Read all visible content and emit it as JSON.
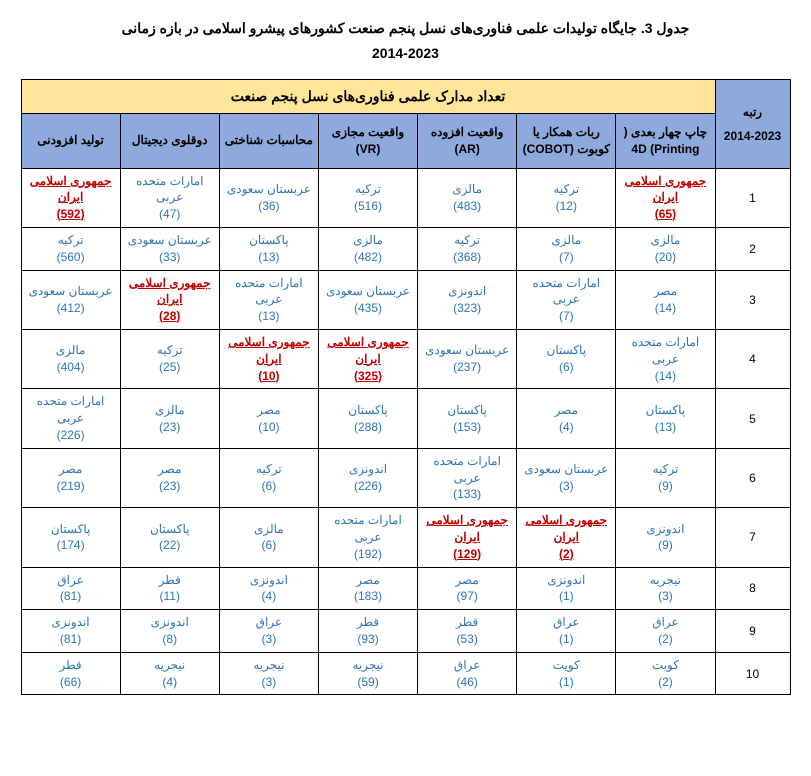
{
  "title": "جدول 3. جایگاه تولیدات علمی فناوری‌های نسل پنجم صنعت کشورهای پیشرو اسلامی در بازه زمانی",
  "subtitle": "2014-2023",
  "headers": {
    "rank": "رتبه",
    "rankYears": "2014-2023",
    "mainHeader": "تعداد مدارک علمی فناوری‌های نسل پنجم صنعت",
    "cols": [
      "چاپ چهار بعدی ( 4D (Printing",
      "ربات همکار یا کوبوت (COBOT)",
      "واقعیت افزوده (AR)",
      "واقعیت مجازی (VR)",
      "محاسبات شناختی",
      "دوقلوی دیجیتال",
      "تولید افزودنی"
    ]
  },
  "rows": [
    {
      "rank": "1",
      "cells": [
        {
          "c": "جمهوری اسلامی ایران",
          "v": "(65)",
          "hl": true
        },
        {
          "c": "ترکیه",
          "v": "(12)"
        },
        {
          "c": "مالزی",
          "v": "(483)"
        },
        {
          "c": "ترکیه",
          "v": "(516)"
        },
        {
          "c": "عربستان سعودی",
          "v": "(36)"
        },
        {
          "c": "امارات متحده عربی",
          "v": "(47)"
        },
        {
          "c": "جمهوری اسلامی ایران",
          "v": "(592)",
          "hl": true
        }
      ]
    },
    {
      "rank": "2",
      "cells": [
        {
          "c": "مالزی",
          "v": "(20)"
        },
        {
          "c": "مالزی",
          "v": "(7)"
        },
        {
          "c": "ترکیه",
          "v": "(368)"
        },
        {
          "c": "مالزی",
          "v": "(482)"
        },
        {
          "c": "پاکستان",
          "v": "(13)"
        },
        {
          "c": "عربستان سعودی",
          "v": "(33)"
        },
        {
          "c": "ترکیه",
          "v": "(560)"
        }
      ]
    },
    {
      "rank": "3",
      "cells": [
        {
          "c": "مصر",
          "v": "(14)"
        },
        {
          "c": "امارات متحده عربی",
          "v": "(7)"
        },
        {
          "c": "اندونزی",
          "v": "(323)"
        },
        {
          "c": "عربستان سعودی",
          "v": "(435)"
        },
        {
          "c": "امارات متحده عربی",
          "v": "(13)"
        },
        {
          "c": "جمهوری اسلامی ایران",
          "v": "(28)",
          "hl": true
        },
        {
          "c": "عربستان سعودی",
          "v": "(412)"
        }
      ]
    },
    {
      "rank": "4",
      "cells": [
        {
          "c": "امارات متحده عربی",
          "v": "(14)"
        },
        {
          "c": "پاکستان",
          "v": "(6)"
        },
        {
          "c": "عربستان سعودی",
          "v": "(237)"
        },
        {
          "c": "جمهوری اسلامی ایران",
          "v": "(325)",
          "hl": true
        },
        {
          "c": "جمهوری اسلامی ایران",
          "v": "(10)",
          "hl": true
        },
        {
          "c": "ترکیه",
          "v": "(25)"
        },
        {
          "c": "مالزی",
          "v": "(404)"
        }
      ]
    },
    {
      "rank": "5",
      "cells": [
        {
          "c": "پاکستان",
          "v": "(13)"
        },
        {
          "c": "مصر",
          "v": "(4)"
        },
        {
          "c": "پاکستان",
          "v": "(153)"
        },
        {
          "c": "پاکستان",
          "v": "(288)"
        },
        {
          "c": "مصر",
          "v": "(10)"
        },
        {
          "c": "مالزی",
          "v": "(23)"
        },
        {
          "c": "امارات متحده عربی",
          "v": "(226)"
        }
      ]
    },
    {
      "rank": "6",
      "cells": [
        {
          "c": "ترکیه",
          "v": "(9)"
        },
        {
          "c": "عربستان سعودی",
          "v": "(3)"
        },
        {
          "c": "امارات متحده عربی",
          "v": "(133)"
        },
        {
          "c": "اندونزی",
          "v": "(226)"
        },
        {
          "c": "ترکیه",
          "v": "(6)"
        },
        {
          "c": "مصر",
          "v": "(23)"
        },
        {
          "c": "مصر",
          "v": "(219)"
        }
      ]
    },
    {
      "rank": "7",
      "cells": [
        {
          "c": "اندونزی",
          "v": "(9)"
        },
        {
          "c": "جمهوری اسلامی ایران",
          "v": "(2)",
          "hl": true
        },
        {
          "c": "جمهوری اسلامی ایران",
          "v": "(129)",
          "hl": true
        },
        {
          "c": "امارات متحده عربی",
          "v": "(192)"
        },
        {
          "c": "مالزی",
          "v": "(6)"
        },
        {
          "c": "پاکستان",
          "v": "(22)"
        },
        {
          "c": "پاکستان",
          "v": "(174)"
        }
      ]
    },
    {
      "rank": "8",
      "cells": [
        {
          "c": "نیجریه",
          "v": "(3)"
        },
        {
          "c": "اندونزی",
          "v": "(1)"
        },
        {
          "c": "مصر",
          "v": "(97)"
        },
        {
          "c": "مصر",
          "v": "(183)"
        },
        {
          "c": "اندونزی",
          "v": "(4)"
        },
        {
          "c": "قطر",
          "v": "(11)"
        },
        {
          "c": "عراق",
          "v": "(81)"
        }
      ]
    },
    {
      "rank": "9",
      "cells": [
        {
          "c": "عراق",
          "v": "(2)"
        },
        {
          "c": "عراق",
          "v": "(1)"
        },
        {
          "c": "قطر",
          "v": "(53)"
        },
        {
          "c": "قطر",
          "v": "(93)"
        },
        {
          "c": "عراق",
          "v": "(3)"
        },
        {
          "c": "اندونزی",
          "v": "(8)"
        },
        {
          "c": "اندونزی",
          "v": "(81)"
        }
      ]
    },
    {
      "rank": "10",
      "cells": [
        {
          "c": "کویت",
          "v": "(2)"
        },
        {
          "c": "کویت",
          "v": "(1)"
        },
        {
          "c": "عراق",
          "v": "(46)"
        },
        {
          "c": "نیجریه",
          "v": "(59)"
        },
        {
          "c": "نیجریه",
          "v": "(3)"
        },
        {
          "c": "نیجریه",
          "v": "(4)"
        },
        {
          "c": "قطر",
          "v": "(66)"
        }
      ]
    }
  ]
}
